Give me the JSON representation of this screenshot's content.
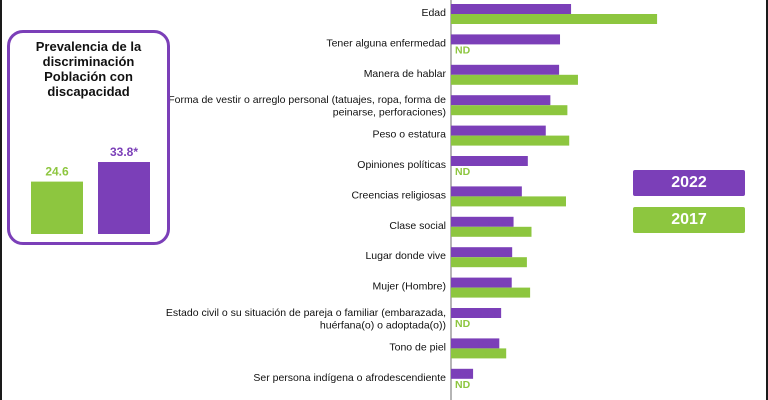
{
  "colors": {
    "series_2022": "#7B3FB8",
    "series_2017": "#8DC63F",
    "axis": "#6b6b6b"
  },
  "inset": {
    "title_lines": [
      "Prevalencia de la",
      "discriminación",
      "Población con",
      "discapacidad"
    ]
  },
  "legend": {
    "y2022": "2022",
    "y2017": "2017"
  },
  "chart_data": [
    {
      "type": "bar",
      "orientation": "horizontal",
      "categories": [
        "Edad",
        "Tener alguna enfermedad",
        "Manera de hablar",
        "Forma de vestir o arreglo personal (tatuajes, ropa, forma de peinarse, perforaciones)",
        "Peso o estatura",
        "Opiniones políticas",
        "Creencias religiosas",
        "Clase social",
        "Lugar donde vive",
        "Mujer (Hombre)",
        "Estado civil o su situación de pareja o familiar (embarazada, huérfana(o) o adoptada(o))",
        "Tono de piel",
        "Ser persona indígena o afrodescendiente"
      ],
      "category_lines": [
        [
          "Edad"
        ],
        [
          "Tener alguna enfermedad"
        ],
        [
          "Manera de hablar"
        ],
        [
          "Forma de vestir o arreglo personal (tatuajes, ropa, forma de",
          "peinarse, perforaciones)"
        ],
        [
          "Peso o estatura"
        ],
        [
          "Opiniones políticas"
        ],
        [
          "Creencias religiosas"
        ],
        [
          "Clase social"
        ],
        [
          "Lugar donde vive"
        ],
        [
          "Mujer (Hombre)"
        ],
        [
          "Estado civil o su situación de pareja o familiar (embarazada,",
          "huérfana(o) o adoptada(o))"
        ],
        [
          "Tono de piel"
        ],
        [
          "Ser persona indígena o afrodescendiente"
        ]
      ],
      "series": [
        {
          "name": "2022",
          "values": [
            26.1,
            23.7,
            23.5,
            21.6,
            20.6,
            16.7,
            15.4,
            13.6,
            13.3,
            13.2,
            10.9,
            10.5,
            4.8
          ],
          "labels": [
            "26.1*",
            "23.7",
            "23.5",
            "21.6",
            "20.6*",
            "16.7",
            "15.4*",
            "13.6*",
            "13.3",
            "13.2",
            "10.9",
            "10.5",
            "4.8"
          ]
        },
        {
          "name": "2017",
          "values": [
            44.8,
            null,
            27.6,
            25.3,
            25.7,
            null,
            25.0,
            17.5,
            16.5,
            17.2,
            null,
            12.0,
            null
          ],
          "labels": [
            "44.8",
            "ND",
            "27.6",
            "25.3",
            "25.7",
            "ND",
            "25.0",
            "17.5",
            "16.5",
            "17.2",
            "ND",
            "12.0",
            "ND"
          ]
        }
      ]
    },
    {
      "type": "bar",
      "categories": [
        "2017",
        "2022"
      ],
      "values": [
        24.6,
        33.8
      ],
      "labels": [
        "24.6",
        "33.8*"
      ]
    }
  ]
}
